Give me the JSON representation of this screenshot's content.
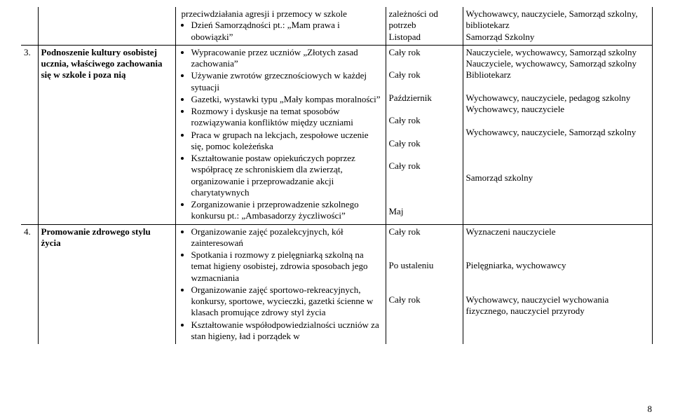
{
  "rows": [
    {
      "num": "",
      "title": "",
      "tasks_pre": [
        "przeciwdziałania agresji i przemocy w szkole"
      ],
      "tasks": [
        "Dzień Samorządności pt.: „Mam prawa i obowiązki”"
      ],
      "term_lines": [
        "zależności od potrzeb",
        "Listopad"
      ],
      "resp_lines": [
        "Wychowawcy, nauczyciele, Samorząd szkolny, bibliotekarz",
        "Samorząd Szkolny"
      ]
    },
    {
      "num": "3.",
      "title": "Podnoszenie kultury osobistej ucznia, właściwego zachowania się w szkole i poza nią",
      "tasks": [
        "Wypracowanie przez uczniów „Złotych zasad zachowania”",
        "Używanie zwrotów grzecznościowych w każdej sytuacji",
        "Gazetki, wystawki typu „Mały kompas moralności”",
        "Rozmowy i dyskusje na temat sposobów rozwiązywania konfliktów między uczniami",
        "Praca w grupach na lekcjach, zespołowe uczenie się, pomoc koleżeńska",
        "Kształtowanie postaw opiekuńczych poprzez współpracę ze schroniskiem dla zwierząt, organizowanie i przeprowadzanie akcji charytatywnych",
        "Zorganizowanie i przeprowadzenie szkolnego konkursu pt.: „Ambasadorzy życzliwości”"
      ],
      "term_lines": [
        "Cały rok",
        "",
        "Cały rok",
        "",
        "Październik",
        "",
        "Cały rok",
        "",
        "Cały rok",
        "",
        "Cały rok",
        "",
        "",
        "",
        "Maj"
      ],
      "resp_lines": [
        "Nauczyciele, wychowawcy, Samorząd szkolny",
        "Nauczyciele, wychowawcy, Samorząd szkolny",
        "Bibliotekarz",
        "",
        "Wychowawcy, nauczyciele, pedagog szkolny",
        "Wychowawcy, nauczyciele",
        "",
        "Wychowawcy, nauczyciele, Samorząd szkolny",
        "",
        "",
        "",
        " Samorząd szkolny"
      ]
    },
    {
      "num": "4.",
      "title": "Promowanie zdrowego stylu życia",
      "tasks": [
        "Organizowanie zajęć pozalekcyjnych, kół zainteresowań",
        "Spotkania i rozmowy z pielęgniarką szkolną na temat higieny osobistej, zdrowia sposobach jego wzmacniania",
        "Organizowanie zajęć sportowo-rekreacyjnych, konkursy, sportowe, wycieczki, gazetki ścienne w klasach promujące zdrowy styl życia",
        "Kształtowanie współodpowiedzialności uczniów za stan higieny, ład i porządek w"
      ],
      "term_lines": [
        "Cały rok",
        "",
        "",
        "Po ustaleniu",
        "",
        "",
        "Cały rok"
      ],
      "resp_lines": [
        "Wyznaczeni nauczyciele",
        "",
        "",
        "Pielęgniarka, wychowawcy",
        "",
        "",
        "Wychowawcy, nauczyciel wychowania fizycznego, nauczyciel przyrody"
      ]
    }
  ],
  "page_number": "8"
}
